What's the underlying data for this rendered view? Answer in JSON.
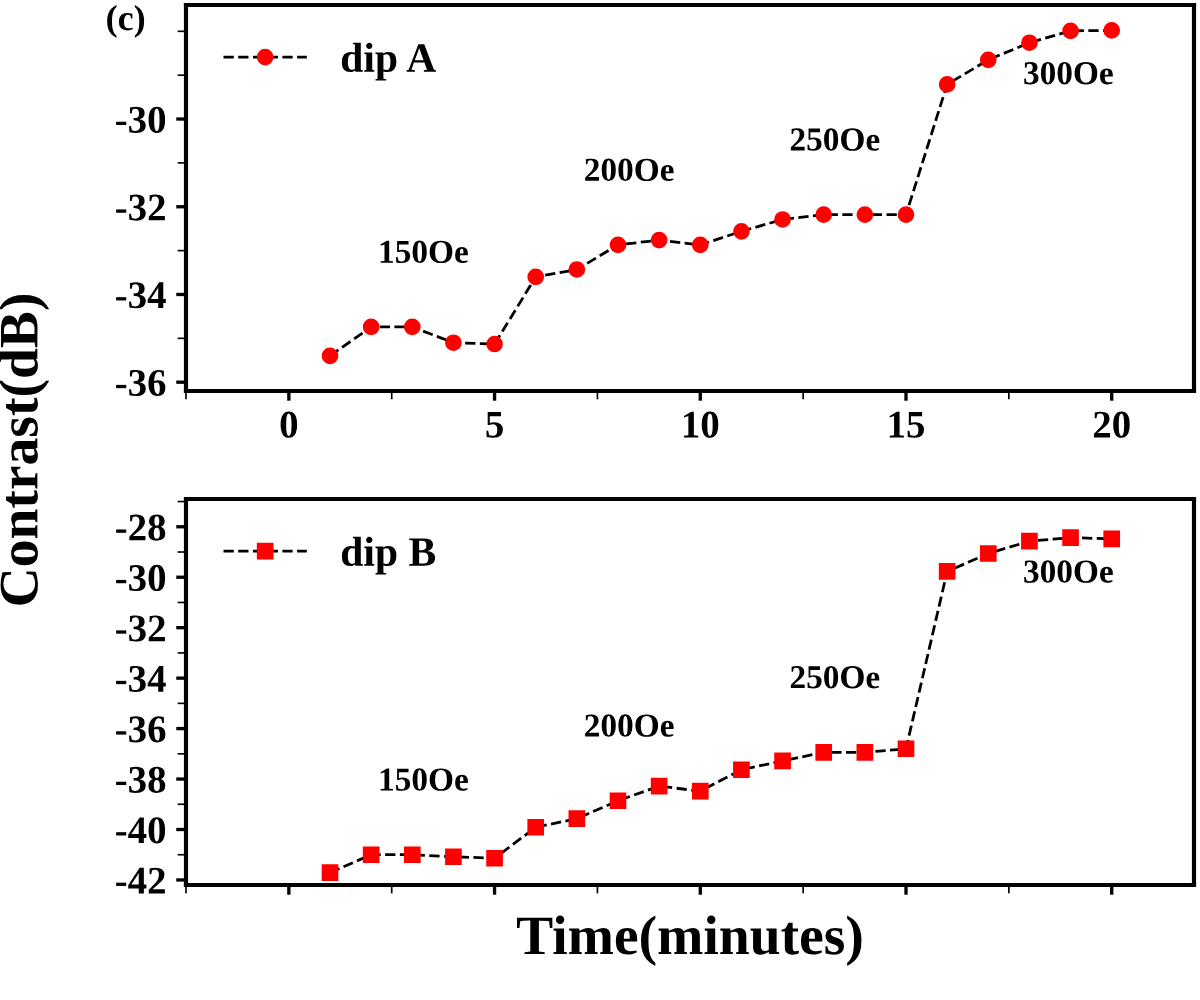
{
  "chart_data": [
    {
      "type": "line",
      "ylabel": "Contrast(dB)",
      "title": "(c)",
      "annotations": [
        "150Oe",
        "200Oe",
        "250Oe",
        "300Oe"
      ],
      "x": [
        1,
        2,
        3,
        4,
        5,
        6,
        7,
        8,
        9,
        10,
        11,
        12,
        13,
        14,
        15,
        16,
        17,
        18,
        19,
        20
      ],
      "series": [
        {
          "name": "dip A",
          "color": "#ff0000",
          "marker": "circle",
          "values": [
            -35.4,
            -34.74,
            -34.74,
            -35.1,
            -35.13,
            -33.6,
            -33.43,
            -32.87,
            -32.76,
            -32.87,
            -32.56,
            -32.29,
            -32.18,
            -32.18,
            -32.18,
            -29.21,
            -28.65,
            -28.26,
            -27.99,
            -27.98
          ]
        }
      ],
      "xlim": [
        -2.5,
        22
      ],
      "xticks": [
        0,
        5,
        10,
        15,
        20
      ],
      "ylim": [
        -36.2,
        -27.4
      ],
      "yticks": [
        -36,
        -34,
        -32,
        -30
      ],
      "line_style": "dashed",
      "legend": "top left",
      "grid": false
    },
    {
      "type": "line",
      "xlabel": "Time(minutes)",
      "annotations": [
        "150Oe",
        "200Oe",
        "250Oe",
        "300Oe"
      ],
      "x": [
        1,
        2,
        3,
        4,
        5,
        6,
        7,
        8,
        9,
        10,
        11,
        12,
        13,
        14,
        15,
        16,
        17,
        18,
        19,
        20
      ],
      "series": [
        {
          "name": "dip B",
          "color": "#ff0000",
          "marker": "square",
          "values": [
            -41.71,
            -41.0,
            -41.0,
            -41.08,
            -41.14,
            -39.91,
            -39.57,
            -38.86,
            -38.28,
            -38.48,
            -37.63,
            -37.28,
            -36.94,
            -36.94,
            -36.8,
            -29.77,
            -29.06,
            -28.57,
            -28.43,
            -28.48
          ]
        }
      ],
      "xlim": [
        -2.5,
        22
      ],
      "xticks": [
        0,
        5,
        10,
        15,
        20
      ],
      "ylim": [
        -42.2,
        -26.9
      ],
      "yticks": [
        -42,
        -40,
        -38,
        -36,
        -34,
        -32,
        -30,
        -28
      ],
      "tick_labels": "y",
      "line_style": "dashed",
      "legend": "top left",
      "grid": false
    }
  ]
}
